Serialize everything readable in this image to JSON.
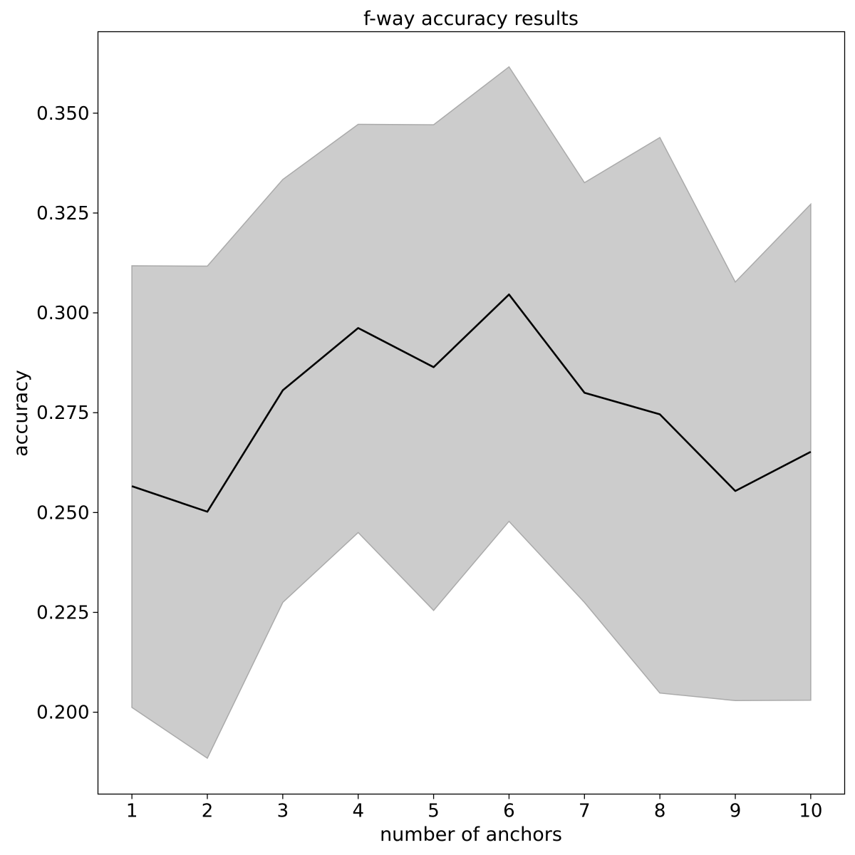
{
  "chart_data": {
    "type": "line",
    "title": "f-way accuracy results",
    "xlabel": "number of anchors",
    "ylabel": "accuracy",
    "x": [
      1,
      2,
      3,
      4,
      5,
      6,
      7,
      8,
      9,
      10
    ],
    "xticks": [
      "1",
      "2",
      "3",
      "4",
      "5",
      "6",
      "7",
      "8",
      "9",
      "10"
    ],
    "xlim": [
      0.55,
      10.45
    ],
    "ylim": [
      0.1795,
      0.3704
    ],
    "yticks": [
      0.2,
      0.225,
      0.25,
      0.275,
      0.3,
      0.325,
      0.35
    ],
    "ytick_labels": [
      "0.200",
      "0.225",
      "0.250",
      "0.275",
      "0.300",
      "0.325",
      "0.350"
    ],
    "grid": false,
    "series": [
      {
        "values": [
          0.2566,
          0.2502,
          0.2806,
          0.2962,
          0.2864,
          0.3046,
          0.28,
          0.2746,
          0.2554,
          0.2652
        ],
        "color": "#000000"
      }
    ],
    "band": {
      "lower": [
        0.2012,
        0.1885,
        0.2275,
        0.245,
        0.2255,
        0.2478,
        0.2275,
        0.2048,
        0.2029,
        0.203
      ],
      "upper": [
        0.3118,
        0.3117,
        0.3334,
        0.3472,
        0.3471,
        0.3616,
        0.3326,
        0.3439,
        0.3077,
        0.3272
      ],
      "color": "#cccccc",
      "edge_color": "#aaaaaa"
    }
  }
}
